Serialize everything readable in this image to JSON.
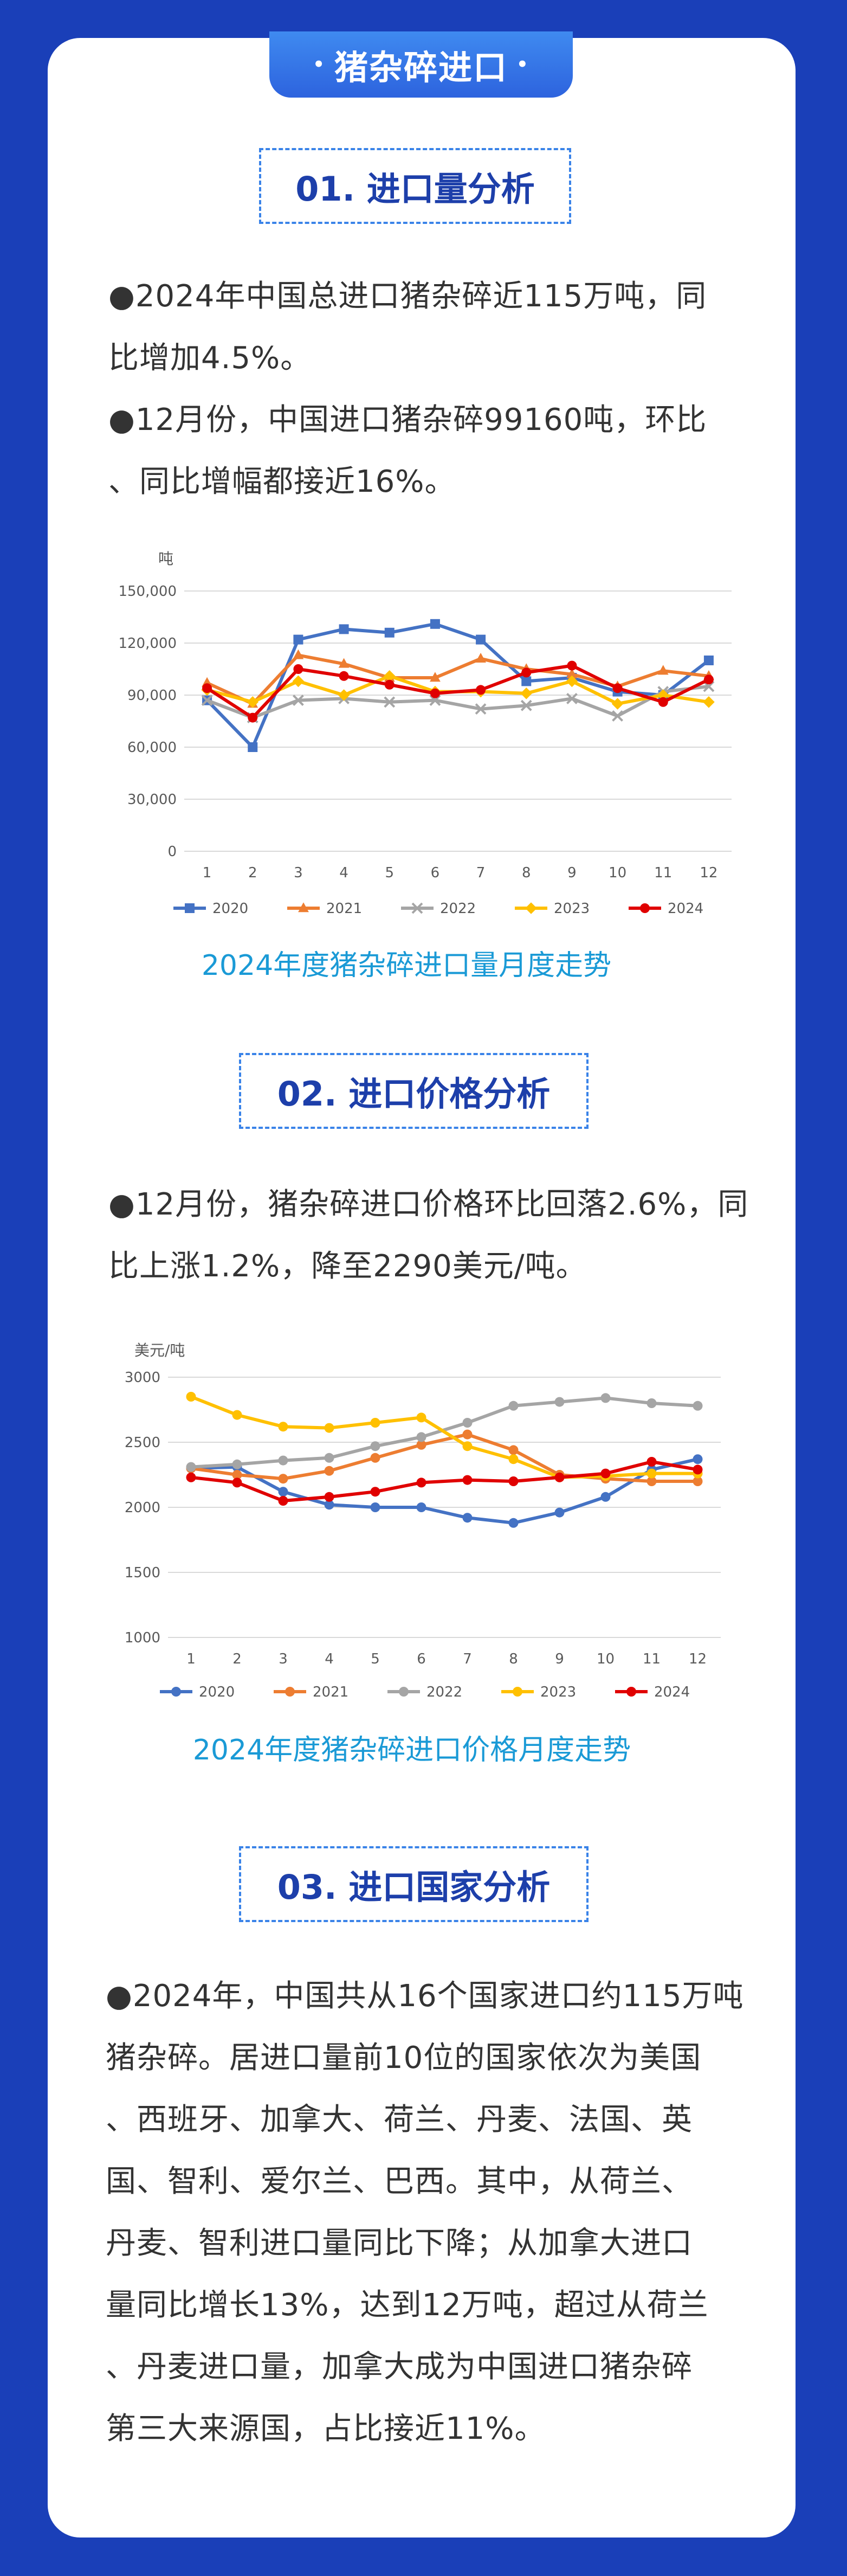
{
  "header": {
    "title": "猪杂碎进口",
    "dot": "•"
  },
  "sections": [
    {
      "title": "01. 进口量分析",
      "lines": [
        "●2024年中国总进口猪杂碎近115万吨，同",
        "比增加4.5%。",
        "●12月份，中国进口猪杂碎99160吨，环比",
        "、同比增幅都接近16%。"
      ],
      "caption": "2024年度猪杂碎进口量月度走势"
    },
    {
      "title": "02. 进口价格分析",
      "lines": [
        "●12月份，猪杂碎进口价格环比回落2.6%，同",
        "比上涨1.2%，降至2290美元/吨。"
      ],
      "caption": "2024年度猪杂碎进口价格月度走势"
    },
    {
      "title": "03. 进口国家分析",
      "lines": [
        "●2024年，中国共从16个国家进口约115万吨",
        "猪杂碎。居进口量前10位的国家依次为美国",
        "、西班牙、加拿大、荷兰、丹麦、法国、英",
        "国、智利、爱尔兰、巴西。其中，从荷兰、",
        "丹麦、智利进口量同比下降；从加拿大进口",
        "量同比增长13%，达到12万吨，超过从荷兰",
        "、丹麦进口量，加拿大成为中国进口猪杂碎",
        "第三大来源国，占比接近11%。"
      ]
    }
  ],
  "chart_data": [
    {
      "type": "line",
      "ylabel": "吨",
      "categories": [
        "1",
        "2",
        "3",
        "4",
        "5",
        "6",
        "7",
        "8",
        "9",
        "10",
        "11",
        "12"
      ],
      "ylim": [
        0,
        150000
      ],
      "yticks": [
        0,
        30000,
        60000,
        90000,
        120000,
        150000
      ],
      "ytick_labels": [
        "0",
        "30,000",
        "60,000",
        "90,000",
        "120,000",
        "150,000"
      ],
      "grid": true,
      "legend": "bottom",
      "series": [
        {
          "name": "2020",
          "color": "#4472c4",
          "marker": "square",
          "values": [
            87000,
            60000,
            122000,
            128000,
            126000,
            131000,
            122000,
            98000,
            100000,
            92000,
            90000,
            110000
          ]
        },
        {
          "name": "2021",
          "color": "#ed7d31",
          "marker": "triangle",
          "values": [
            97000,
            85000,
            113000,
            108000,
            100000,
            100000,
            111000,
            105000,
            102000,
            95000,
            104000,
            101000
          ]
        },
        {
          "name": "2022",
          "color": "#a5a5a5",
          "marker": "x",
          "values": [
            87000,
            77000,
            87000,
            88000,
            86000,
            87000,
            82000,
            84000,
            88000,
            78000,
            92000,
            95000
          ]
        },
        {
          "name": "2023",
          "color": "#ffc000",
          "marker": "diamond",
          "values": [
            93000,
            86000,
            98000,
            90000,
            101000,
            92000,
            92000,
            91000,
            98000,
            85000,
            90000,
            86000
          ]
        },
        {
          "name": "2024",
          "color": "#e00000",
          "marker": "circle",
          "values": [
            94000,
            77000,
            105000,
            101000,
            96000,
            91000,
            93000,
            103000,
            107000,
            94000,
            86000,
            99000
          ]
        }
      ]
    },
    {
      "type": "line",
      "ylabel": "美元/吨",
      "categories": [
        "1",
        "2",
        "3",
        "4",
        "5",
        "6",
        "7",
        "8",
        "9",
        "10",
        "11",
        "12"
      ],
      "ylim": [
        1000,
        3000
      ],
      "yticks": [
        1000,
        1500,
        2000,
        2500,
        3000
      ],
      "ytick_labels": [
        "1000",
        "1500",
        "2000",
        "2500",
        "3000"
      ],
      "grid": true,
      "legend": "bottom",
      "series": [
        {
          "name": "2020",
          "color": "#4472c4",
          "marker": "circle",
          "values": [
            2300,
            2310,
            2120,
            2020,
            2000,
            2000,
            1920,
            1880,
            1960,
            2080,
            2290,
            2370
          ]
        },
        {
          "name": "2021",
          "color": "#ed7d31",
          "marker": "circle",
          "values": [
            2300,
            2250,
            2220,
            2280,
            2380,
            2480,
            2560,
            2440,
            2250,
            2220,
            2200,
            2200
          ]
        },
        {
          "name": "2022",
          "color": "#a5a5a5",
          "marker": "circle",
          "values": [
            2310,
            2330,
            2360,
            2380,
            2470,
            2540,
            2650,
            2780,
            2810,
            2840,
            2800,
            2780
          ]
        },
        {
          "name": "2023",
          "color": "#ffc000",
          "marker": "circle",
          "values": [
            2850,
            2710,
            2620,
            2610,
            2650,
            2690,
            2470,
            2370,
            2230,
            2240,
            2260,
            2260
          ]
        },
        {
          "name": "2024",
          "color": "#e00000",
          "marker": "circle",
          "values": [
            2230,
            2190,
            2050,
            2080,
            2120,
            2190,
            2210,
            2200,
            2230,
            2260,
            2350,
            2290
          ]
        }
      ]
    }
  ]
}
